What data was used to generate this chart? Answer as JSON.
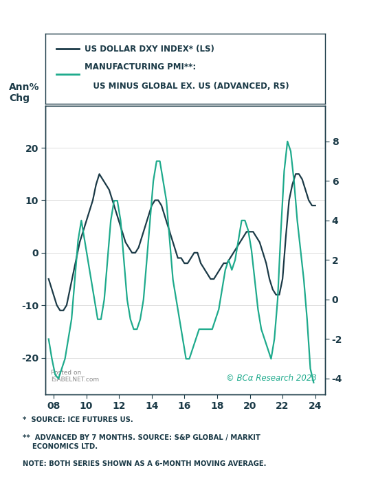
{
  "ylabel_left": "Ann%\nChg",
  "legend_line1": "US DOLLAR DXY INDEX* (LS)",
  "legend_line2_part1": "MANUFACTURING PMI**:",
  "legend_line2_part2": "   US MINUS GLOBAL EX. US (ADVANCED, RS)",
  "footnote1": "*  SOURCE: ICE FUTURES US.",
  "footnote2": "**  ADVANCED BY 7 MONTHS. SOURCE: S&P GLOBAL / MARKIT\n    ECONOMICS LTD.",
  "footnote3": "NOTE: BOTH SERIES SHOWN AS A 6-MONTH MOVING AVERAGE.",
  "watermark": "© BCα Research 2023",
  "dxy_color": "#1b3a47",
  "pmi_color": "#1eaa8c",
  "background_color": "#ffffff",
  "text_color": "#1b3a47",
  "ylim_left": [
    -27,
    28
  ],
  "ylim_right": [
    -4.8,
    9.8
  ],
  "xlim": [
    7.5,
    24.6
  ],
  "xticks": [
    8,
    10,
    12,
    14,
    16,
    18,
    20,
    22,
    24
  ],
  "yticks_left": [
    -20,
    -10,
    0,
    10,
    20
  ],
  "yticks_right": [
    -4,
    -2,
    0,
    2,
    4,
    6,
    8
  ],
  "dxy_x": [
    7.7,
    8.0,
    8.2,
    8.4,
    8.6,
    8.8,
    9.0,
    9.2,
    9.4,
    9.6,
    9.8,
    10.0,
    10.2,
    10.4,
    10.6,
    10.8,
    11.0,
    11.2,
    11.4,
    11.6,
    11.8,
    12.0,
    12.2,
    12.4,
    12.6,
    12.8,
    13.0,
    13.2,
    13.4,
    13.6,
    13.8,
    14.0,
    14.2,
    14.4,
    14.6,
    14.8,
    15.0,
    15.2,
    15.4,
    15.6,
    15.8,
    16.0,
    16.2,
    16.4,
    16.6,
    16.8,
    17.0,
    17.2,
    17.4,
    17.6,
    17.8,
    18.0,
    18.2,
    18.4,
    18.6,
    18.8,
    19.0,
    19.2,
    19.4,
    19.6,
    19.8,
    20.0,
    20.2,
    20.4,
    20.6,
    20.8,
    21.0,
    21.2,
    21.4,
    21.6,
    21.8,
    22.0,
    22.2,
    22.4,
    22.6,
    22.8,
    23.0,
    23.2,
    23.4,
    23.6,
    23.8,
    24.0
  ],
  "dxy_y": [
    -5,
    -8,
    -10,
    -11,
    -11,
    -10,
    -7,
    -4,
    -1,
    2,
    4,
    6,
    8,
    10,
    13,
    15,
    14,
    13,
    12,
    10,
    8,
    6,
    4,
    2,
    1,
    0,
    0,
    1,
    3,
    5,
    7,
    9,
    10,
    10,
    9,
    7,
    5,
    3,
    1,
    -1,
    -1,
    -2,
    -2,
    -1,
    0,
    0,
    -2,
    -3,
    -4,
    -5,
    -5,
    -4,
    -3,
    -2,
    -2,
    -1,
    0,
    1,
    2,
    3,
    4,
    4,
    4,
    3,
    2,
    0,
    -2,
    -5,
    -7,
    -8,
    -8,
    -5,
    3,
    10,
    13,
    15,
    15,
    14,
    12,
    10,
    9,
    9
  ],
  "pmi_x": [
    7.7,
    7.9,
    8.1,
    8.3,
    8.5,
    8.7,
    8.9,
    9.1,
    9.3,
    9.5,
    9.7,
    9.9,
    10.1,
    10.3,
    10.5,
    10.7,
    10.9,
    11.1,
    11.3,
    11.5,
    11.7,
    11.9,
    12.1,
    12.3,
    12.5,
    12.7,
    12.9,
    13.1,
    13.3,
    13.5,
    13.7,
    13.9,
    14.1,
    14.3,
    14.5,
    14.7,
    14.9,
    15.1,
    15.3,
    15.5,
    15.7,
    15.9,
    16.1,
    16.3,
    16.5,
    16.7,
    16.9,
    17.1,
    17.3,
    17.5,
    17.7,
    17.9,
    18.1,
    18.3,
    18.5,
    18.7,
    18.9,
    19.1,
    19.3,
    19.5,
    19.7,
    19.9,
    20.1,
    20.3,
    20.5,
    20.7,
    20.9,
    21.1,
    21.3,
    21.5,
    21.7,
    21.9,
    22.1,
    22.3,
    22.5,
    22.7,
    22.9,
    23.1,
    23.3,
    23.5,
    23.7,
    23.9
  ],
  "pmi_y": [
    -2,
    -3,
    -3.8,
    -4,
    -3.5,
    -3,
    -2,
    -1,
    1,
    3,
    4,
    3,
    2,
    1,
    0,
    -1,
    -1,
    0,
    2,
    4,
    5,
    5,
    4,
    2,
    0,
    -1,
    -1.5,
    -1.5,
    -1,
    0,
    2,
    4,
    6,
    7,
    7,
    6,
    5,
    3,
    1,
    0,
    -1,
    -2,
    -3,
    -3,
    -2.5,
    -2,
    -1.5,
    -1.5,
    -1.5,
    -1.5,
    -1.5,
    -1,
    -0.5,
    0.5,
    1.5,
    2,
    1.5,
    2,
    3,
    4,
    4,
    3.5,
    2.5,
    1,
    -0.5,
    -1.5,
    -2,
    -2.5,
    -3,
    -2,
    0,
    3.5,
    6.5,
    8,
    7.5,
    6,
    4,
    2.5,
    1,
    -1,
    -3.5,
    -4.2
  ]
}
